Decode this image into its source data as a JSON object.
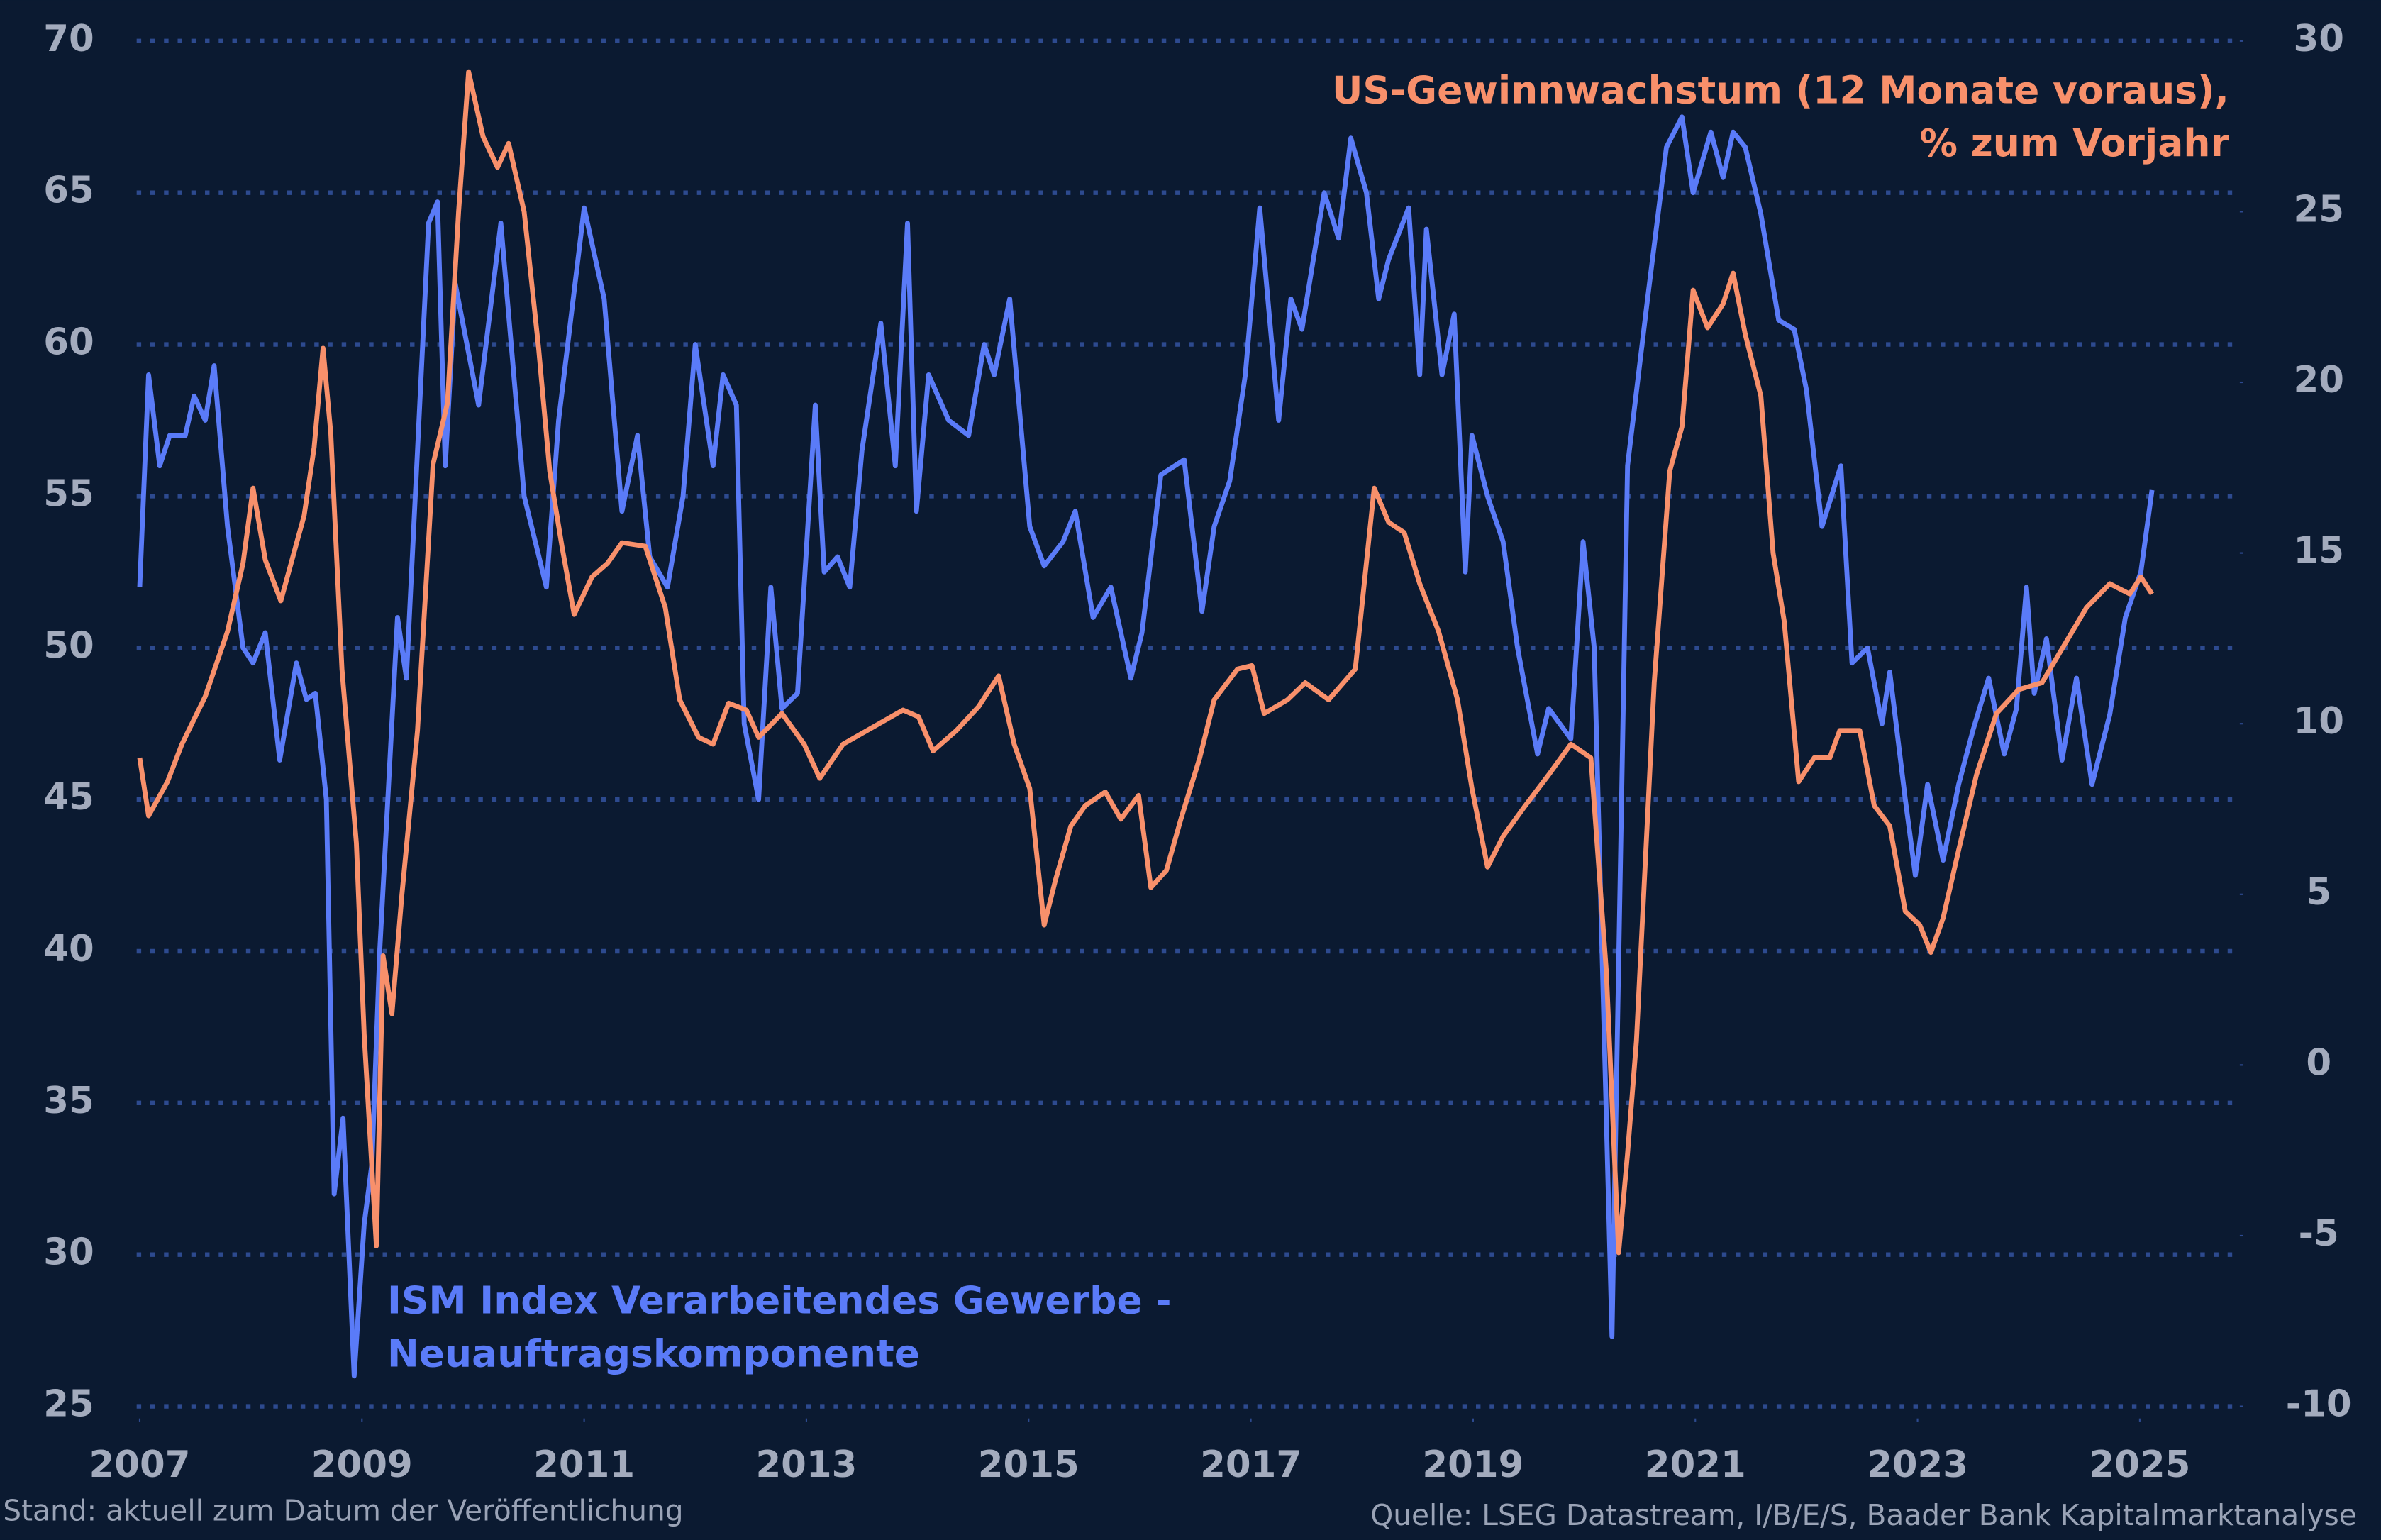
{
  "chart_data": {
    "type": "line",
    "xlim": [
      2007,
      2025.9
    ],
    "xticks": [
      2007,
      2009,
      2011,
      2013,
      2015,
      2017,
      2019,
      2021,
      2023,
      2025
    ],
    "ylim": [
      25,
      70
    ],
    "yticks": [
      25,
      30,
      35,
      40,
      45,
      50,
      55,
      60,
      65,
      70
    ],
    "y2lim": [
      -10,
      30
    ],
    "y2ticks": [
      -10,
      -5,
      0,
      5,
      10,
      15,
      20,
      25,
      30
    ],
    "grid": true,
    "footnote": "Stand: aktuell zum Datum der Veröffentlichung",
    "source": "Quelle: LSEG Datastream, I/B/E/S, Baader Bank Kapitalmarktanalyse",
    "series": [
      {
        "name": [
          "ISM Index Verarbeitendes Gewerbe -",
          "Neuauftragskomponente"
        ],
        "color": "#5a7bf8",
        "x": [
          2007.0,
          2007.08,
          2007.18,
          2007.27,
          2007.41,
          2007.49,
          2007.59,
          2007.67,
          2007.79,
          2007.93,
          2008.02,
          2008.13,
          2008.26,
          2008.41,
          2008.5,
          2008.58,
          2008.68,
          2008.75,
          2008.83,
          2008.93,
          2009.02,
          2009.09,
          2009.16,
          2009.32,
          2009.4,
          2009.6,
          2009.68,
          2009.75,
          2009.84,
          2010.05,
          2010.25,
          2010.46,
          2010.66,
          2010.77,
          2011.0,
          2011.18,
          2011.34,
          2011.48,
          2011.59,
          2011.75,
          2011.89,
          2012.0,
          2012.16,
          2012.25,
          2012.37,
          2012.44,
          2012.57,
          2012.68,
          2012.78,
          2012.92,
          2013.08,
          2013.16,
          2013.28,
          2013.39,
          2013.5,
          2013.67,
          2013.8,
          2013.91,
          2013.99,
          2014.1,
          2014.28,
          2014.46,
          2014.6,
          2014.69,
          2014.83,
          2015.01,
          2015.14,
          2015.31,
          2015.42,
          2015.58,
          2015.74,
          2015.92,
          2016.02,
          2016.19,
          2016.4,
          2016.56,
          2016.67,
          2016.81,
          2016.95,
          2017.08,
          2017.25,
          2017.36,
          2017.46,
          2017.66,
          2017.79,
          2017.9,
          2018.04,
          2018.15,
          2018.24,
          2018.42,
          2018.52,
          2018.58,
          2018.72,
          2018.83,
          2018.93,
          2018.99,
          2019.13,
          2019.27,
          2019.4,
          2019.58,
          2019.68,
          2019.88,
          2019.99,
          2020.09,
          2020.25,
          2020.39,
          2020.57,
          2020.74,
          2020.88,
          2020.98,
          2021.14,
          2021.25,
          2021.34,
          2021.45,
          2021.59,
          2021.75,
          2021.89,
          2022.0,
          2022.14,
          2022.31,
          2022.41,
          2022.55,
          2022.68,
          2022.75,
          2022.89,
          2022.98,
          2023.09,
          2023.23,
          2023.37,
          2023.5,
          2023.64,
          2023.78,
          2023.89,
          2023.98,
          2024.05,
          2024.16,
          2024.3,
          2024.43,
          2024.57,
          2024.73,
          2024.87,
          2025.01,
          2025.11
        ],
        "values": [
          52,
          59,
          56,
          57,
          57,
          58.3,
          57.5,
          59.3,
          54,
          50,
          49.5,
          50.5,
          46.3,
          49.5,
          48.3,
          48.5,
          45,
          32,
          34.5,
          26,
          31,
          33,
          40,
          51,
          49,
          64,
          64.7,
          56,
          62,
          58,
          64,
          55,
          52,
          57.5,
          64.5,
          61.5,
          54.5,
          57,
          53,
          52,
          55,
          60,
          56,
          59,
          58,
          47.5,
          45,
          52,
          48,
          48.5,
          58,
          52.5,
          53,
          52,
          56.5,
          60.7,
          56,
          64,
          54.5,
          59,
          57.5,
          57,
          60,
          59,
          61.5,
          54,
          52.7,
          53.5,
          54.5,
          51,
          52,
          49,
          50.5,
          55.7,
          56.2,
          51.2,
          54,
          55.5,
          59,
          64.5,
          57.5,
          61.5,
          60.5,
          65,
          63.5,
          66.8,
          65,
          61.5,
          62.8,
          64.5,
          59,
          63.8,
          59,
          61,
          52.5,
          57,
          55,
          53.5,
          50,
          46.5,
          48,
          47,
          53.5,
          50,
          27.3,
          56,
          61.5,
          66.5,
          67.5,
          65,
          67,
          65.5,
          67,
          66.5,
          64.3,
          60.8,
          60.5,
          58.5,
          54,
          56,
          49.5,
          50,
          47.5,
          49.2,
          45,
          42.5,
          45.5,
          43,
          45.5,
          47.3,
          49,
          46.5,
          48,
          52,
          48.5,
          50.3,
          46.3,
          49,
          45.5,
          47.8,
          51,
          52.5,
          55.2
        ]
      },
      {
        "name": [
          "US-Gewinnwachstum (12 Monate voraus),",
          "% zum Vorjahr"
        ],
        "color": "#f8906b",
        "axis": "y2",
        "x": [
          2007.0,
          2007.08,
          2007.25,
          2007.38,
          2007.59,
          2007.79,
          2007.93,
          2008.02,
          2008.13,
          2008.27,
          2008.48,
          2008.57,
          2008.65,
          2008.72,
          2008.82,
          2008.95,
          2009.02,
          2009.13,
          2009.19,
          2009.27,
          2009.36,
          2009.5,
          2009.64,
          2009.77,
          2009.87,
          2009.96,
          2010.09,
          2010.22,
          2010.32,
          2010.46,
          2010.59,
          2010.69,
          2010.8,
          2010.91,
          2011.07,
          2011.21,
          2011.34,
          2011.55,
          2011.73,
          2011.86,
          2012.03,
          2012.16,
          2012.3,
          2012.46,
          2012.57,
          2012.78,
          2012.98,
          2013.12,
          2013.33,
          2013.6,
          2013.87,
          2014.01,
          2014.14,
          2014.35,
          2014.55,
          2014.73,
          2014.87,
          2015.01,
          2015.14,
          2015.24,
          2015.38,
          2015.51,
          2015.69,
          2015.83,
          2015.99,
          2016.1,
          2016.24,
          2016.37,
          2016.54,
          2016.67,
          2016.88,
          2017.01,
          2017.12,
          2017.33,
          2017.49,
          2017.7,
          2017.94,
          2018.11,
          2018.24,
          2018.38,
          2018.52,
          2018.69,
          2018.86,
          2018.99,
          2019.13,
          2019.27,
          2019.47,
          2019.68,
          2019.88,
          2020.06,
          2020.2,
          2020.31,
          2020.39,
          2020.47,
          2020.63,
          2020.77,
          2020.88,
          2020.98,
          2021.11,
          2021.25,
          2021.34,
          2021.45,
          2021.59,
          2021.7,
          2021.8,
          2021.93,
          2022.07,
          2022.21,
          2022.3,
          2022.48,
          2022.61,
          2022.75,
          2022.89,
          2023.02,
          2023.12,
          2023.23,
          2023.37,
          2023.53,
          2023.71,
          2023.91,
          2024.12,
          2024.32,
          2024.52,
          2024.73,
          2024.91,
          2025.01,
          2025.11
        ],
        "values": [
          9,
          7.3,
          8.3,
          9.4,
          10.8,
          12.7,
          14.7,
          16.9,
          14.8,
          13.6,
          16.1,
          18.1,
          21,
          18.5,
          11.6,
          6.5,
          0.9,
          -5.3,
          3.2,
          1.5,
          5,
          9.8,
          17.6,
          19.4,
          25,
          29.1,
          27.2,
          26.3,
          27,
          25,
          21,
          17.4,
          15.2,
          13.2,
          14.3,
          14.7,
          15.3,
          15.2,
          13.4,
          10.7,
          9.6,
          9.4,
          10.6,
          10.4,
          9.6,
          10.3,
          9.4,
          8.4,
          9.4,
          9.9,
          10.4,
          10.2,
          9.2,
          9.8,
          10.5,
          11.4,
          9.4,
          8.1,
          4.1,
          5.4,
          7,
          7.6,
          8,
          7.2,
          7.9,
          5.2,
          5.7,
          7.2,
          9,
          10.7,
          11.6,
          11.7,
          10.3,
          10.7,
          11.2,
          10.7,
          11.6,
          16.9,
          15.9,
          15.6,
          14.1,
          12.7,
          10.7,
          8.1,
          5.8,
          6.7,
          7.6,
          8.5,
          9.4,
          9,
          2.7,
          -5.5,
          -2.6,
          0.7,
          11.2,
          17.4,
          18.7,
          22.7,
          21.6,
          22.3,
          23.2,
          21.4,
          19.6,
          15,
          13,
          8.3,
          9,
          9,
          9.8,
          9.8,
          7.6,
          7,
          4.5,
          4.1,
          3.3,
          4.3,
          6.3,
          8.5,
          10.3,
          11,
          11.2,
          12.3,
          13.4,
          14.1,
          13.8,
          14.3,
          13.8
        ]
      }
    ]
  }
}
